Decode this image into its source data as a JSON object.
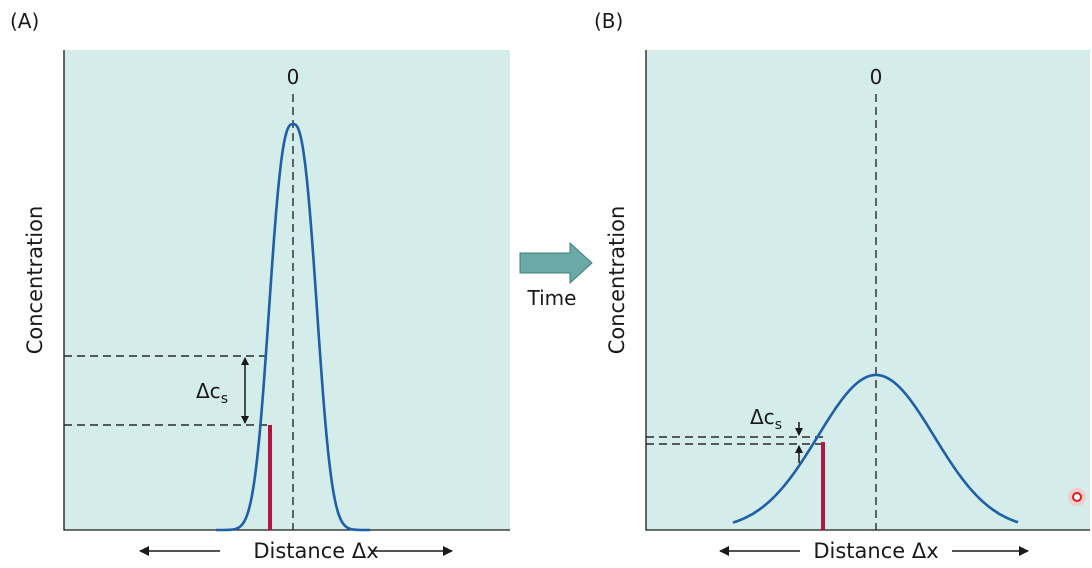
{
  "panels": [
    {
      "letter": "(A)",
      "zero_label": "0",
      "ylabel": "Concentration",
      "xlabel": "Distance Δx",
      "delta_label": "Δc",
      "delta_sub": "s",
      "curve": "narrow-tall"
    },
    {
      "letter": "(B)",
      "zero_label": "0",
      "ylabel": "Concentration",
      "xlabel": "Distance Δx",
      "delta_label": "Δc",
      "delta_sub": "s",
      "curve": "broad-low"
    }
  ],
  "time_label": "Time",
  "colors": {
    "panel_bg": "#d4ecea",
    "curve": "#1f5fa8",
    "marker": "#b01843",
    "time_arrow": "#6aa9a5"
  }
}
